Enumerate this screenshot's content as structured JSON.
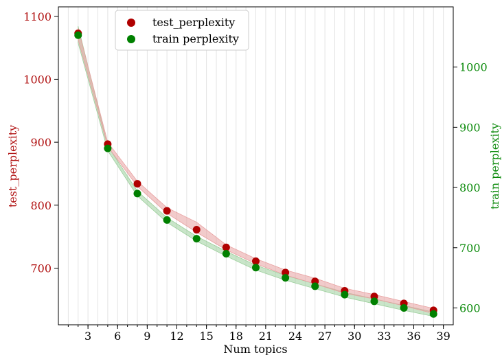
{
  "chart_data": {
    "type": "scatter",
    "xlabel": "Num topics",
    "x": [
      2,
      5,
      8,
      11,
      14,
      17,
      20,
      23,
      26,
      29,
      32,
      35,
      38
    ],
    "x_ticks": [
      "3",
      "6",
      "9",
      "12",
      "15",
      "18",
      "21",
      "24",
      "27",
      "30",
      "33",
      "36",
      "39"
    ],
    "xlim": [
      0,
      40
    ],
    "grid": "vertical",
    "legend_position": "top-left",
    "left_axis": {
      "label": "test_perplexity",
      "color": "#b01010",
      "ylim": [
        610,
        1115
      ],
      "ticks": [
        "700",
        "800",
        "900",
        "1000",
        "1100"
      ]
    },
    "right_axis": {
      "label": "train perplexity",
      "color": "#0b8a0b",
      "ylim": [
        572,
        1100
      ],
      "ticks": [
        "600",
        "700",
        "800",
        "900",
        "1000"
      ]
    },
    "series": [
      {
        "name": "test_perplexity",
        "axis": "left",
        "color": "#b00000",
        "band_color": "#e8a0a0",
        "values": [
          1073,
          897,
          834,
          791,
          761,
          733,
          711,
          693,
          679,
          664,
          655,
          644,
          633
        ],
        "band_upper": [
          1081,
          900,
          838,
          796,
          773,
          737,
          715,
          697,
          684,
          668,
          658,
          647,
          636
        ],
        "band_lower": [
          1063,
          893,
          830,
          787,
          757,
          729,
          707,
          689,
          675,
          660,
          651,
          640,
          628
        ]
      },
      {
        "name": "train perplexity",
        "axis": "right",
        "color": "#008000",
        "band_color": "#9ccf9c",
        "values": [
          1053,
          865,
          790,
          746,
          715,
          690,
          667,
          650,
          636,
          622,
          611,
          600,
          590
        ],
        "band_upper": [
          1068,
          869,
          794,
          750,
          719,
          694,
          671,
          654,
          640,
          626,
          615,
          604,
          593
        ],
        "band_lower": [
          1040,
          861,
          786,
          742,
          711,
          686,
          663,
          646,
          632,
          618,
          607,
          596,
          586
        ]
      }
    ]
  }
}
